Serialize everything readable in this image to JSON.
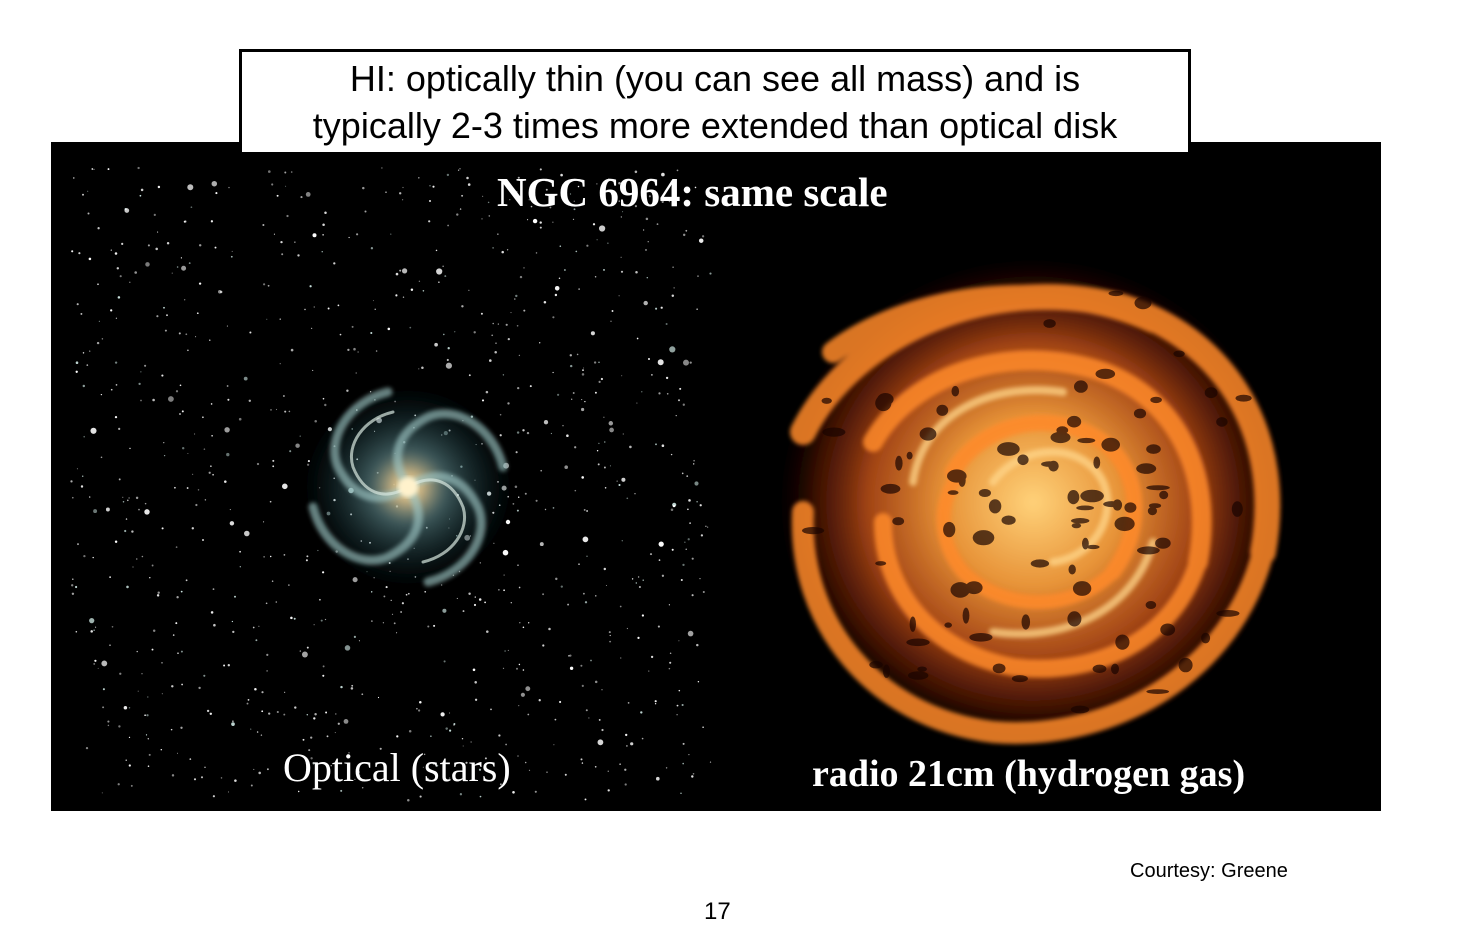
{
  "callout": {
    "line1": "HI: optically thin (you can see all mass) and is",
    "line2": "typically 2-3 times more extended than optical disk"
  },
  "figure": {
    "title": "NGC 6964: same scale",
    "left_label": "Optical (stars)",
    "right_label": "radio 21cm (hydrogen gas)"
  },
  "credit": "Courtesy: Greene",
  "page_number": "17"
}
